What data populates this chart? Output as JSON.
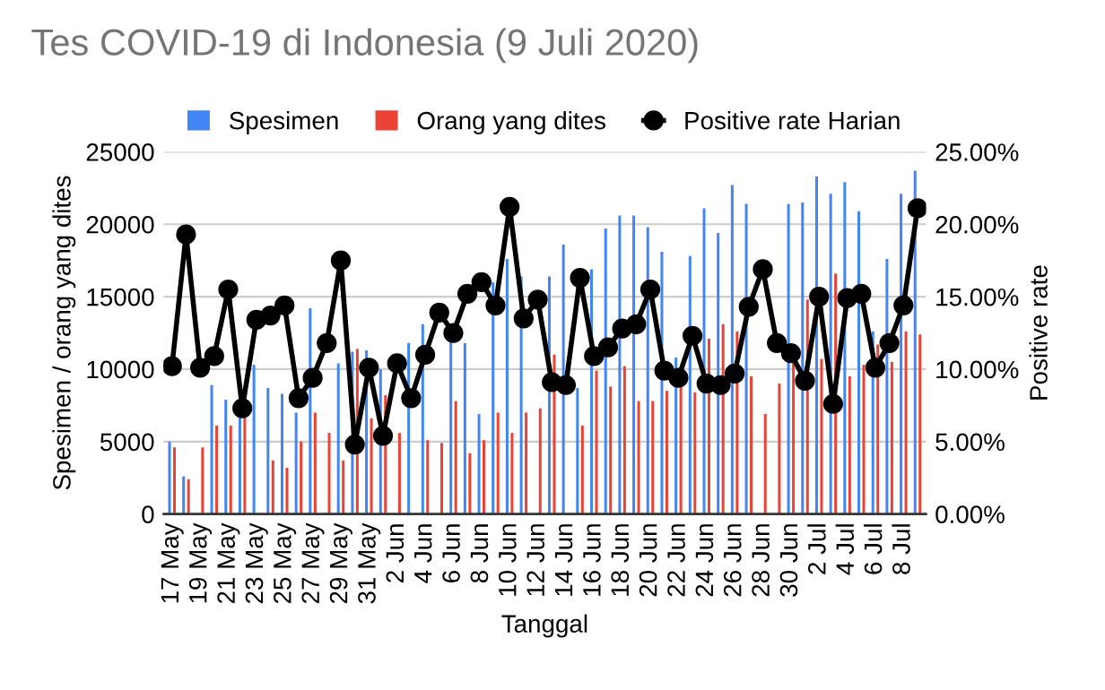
{
  "chart_data": {
    "type": "bar",
    "title": "Tes COVID-19 di Indonesia (9 Juli 2020)",
    "xlabel": "Tanggal",
    "ylabel": "Spesimen / orang yang dites",
    "y2label": "Positive rate",
    "categories": [
      "17 May",
      null,
      "19 May",
      null,
      "21 May",
      null,
      "23 May",
      null,
      "25 May",
      null,
      "27 May",
      null,
      "29 May",
      null,
      "31 May",
      null,
      "2 Jun",
      null,
      "4 Jun",
      null,
      "6 Jun",
      null,
      "8 Jun",
      null,
      "10 Jun",
      null,
      "12 Jun",
      null,
      "14 Jun",
      null,
      "16 Jun",
      null,
      "18 Jun",
      null,
      "20 Jun",
      null,
      "22 Jun",
      null,
      "24 Jun",
      null,
      "26 Jun",
      null,
      "28 Jun",
      null,
      "30 Jun",
      null,
      "2 Jul",
      null,
      "4 Jul",
      null,
      "6 Jul",
      null,
      "8 Jul",
      null
    ],
    "series": [
      {
        "name": "Spesimen",
        "color": "#4285f4",
        "values": [
          5000,
          2600,
          null,
          8900,
          7900,
          7000,
          10300,
          8700,
          8300,
          7000,
          14200,
          null,
          10400,
          11200,
          11300,
          10000,
          null,
          11800,
          13100,
          null,
          12200,
          11800,
          6900,
          16000,
          17600,
          16400,
          null,
          16400,
          18600,
          8700,
          16900,
          19700,
          20600,
          20600,
          19800,
          18100,
          10800,
          17800,
          21100,
          19400,
          22700,
          21400,
          null,
          null,
          21400,
          21500,
          23300,
          22100,
          22900,
          20900,
          12600,
          17600,
          22100,
          23700
        ]
      },
      {
        "name": "Orang yang dites",
        "color": "#ea4335",
        "values": [
          4600,
          2400,
          4600,
          6100,
          6100,
          6900,
          null,
          3700,
          3200,
          5000,
          7000,
          5600,
          3700,
          11400,
          6600,
          8200,
          5600,
          null,
          5100,
          4900,
          7800,
          4200,
          5100,
          7000,
          5600,
          7000,
          7300,
          11000,
          null,
          6100,
          9900,
          8800,
          10200,
          7800,
          7800,
          8500,
          9000,
          8400,
          12100,
          13100,
          12600,
          9500,
          6900,
          9000,
          10500,
          14800,
          10700,
          16600,
          9500,
          10300,
          11700,
          10500,
          12600,
          12400
        ]
      },
      {
        "name": "Positive rate Harian",
        "type": "line",
        "axis": "y2",
        "color": "#000000",
        "marker": "circle",
        "values": [
          10.2,
          19.3,
          10.1,
          10.9,
          15.5,
          7.3,
          13.4,
          13.7,
          14.4,
          8.0,
          9.4,
          11.8,
          17.5,
          4.8,
          10.1,
          5.4,
          10.4,
          8.0,
          11.0,
          13.9,
          12.5,
          15.2,
          16.0,
          14.4,
          21.2,
          13.5,
          14.8,
          9.1,
          8.9,
          16.3,
          10.9,
          11.5,
          12.8,
          13.1,
          15.5,
          9.9,
          9.4,
          12.3,
          9.0,
          8.9,
          9.7,
          14.3,
          16.9,
          11.8,
          11.1,
          9.2,
          15.0,
          7.6,
          14.9,
          15.2,
          10.1,
          11.8,
          14.4,
          21.1
        ]
      }
    ],
    "ylim": [
      0,
      25000
    ],
    "yticks": [
      0,
      5000,
      10000,
      15000,
      20000,
      25000
    ],
    "y2lim": [
      0,
      25
    ],
    "y2ticks": [
      {
        "value": 0,
        "label": "0.00%"
      },
      {
        "value": 5,
        "label": "5.00%"
      },
      {
        "value": 10,
        "label": "10.00%"
      },
      {
        "value": 15,
        "label": "15.00%"
      },
      {
        "value": 20,
        "label": "20.00%"
      },
      {
        "value": 25,
        "label": "25.00%"
      }
    ],
    "grid": "y",
    "legend": "top"
  }
}
